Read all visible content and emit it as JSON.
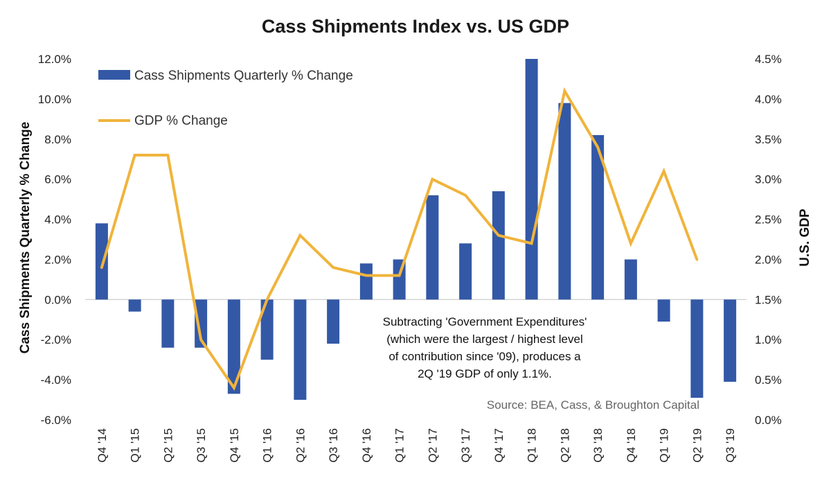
{
  "chart_data": {
    "type": "bar",
    "title": "Cass Shipments Index vs. US GDP",
    "categories": [
      "Q4 '14",
      "Q1 '15",
      "Q2 '15",
      "Q3 '15",
      "Q4 '15",
      "Q1 '16",
      "Q2 '16",
      "Q3 '16",
      "Q4 '16",
      "Q1 '17",
      "Q2 '17",
      "Q3 '17",
      "Q4 '17",
      "Q1 '18",
      "Q2 '18",
      "Q3 '18",
      "Q4 '18",
      "Q1 '19",
      "Q2 '19",
      "Q3 '19"
    ],
    "series": [
      {
        "name": "Cass Shipments Quarterly % Change",
        "type": "bar",
        "axis": "left",
        "color": "#3358a6",
        "values": [
          3.8,
          -0.6,
          -2.4,
          -2.4,
          -4.7,
          -3.0,
          -5.0,
          -2.2,
          1.8,
          2.0,
          5.2,
          2.8,
          5.4,
          12.0,
          9.8,
          8.2,
          2.0,
          -1.1,
          -4.9,
          -4.1
        ]
      },
      {
        "name": "GDP % Change",
        "type": "line",
        "axis": "right",
        "color": "#f0b43c",
        "values": [
          1.9,
          3.3,
          3.3,
          1.0,
          0.4,
          1.5,
          2.3,
          1.9,
          1.8,
          1.8,
          3.0,
          2.8,
          2.3,
          2.2,
          4.1,
          3.4,
          2.2,
          3.1,
          2.0,
          null
        ]
      }
    ],
    "ylabel": "Cass Shipments Quarterly % Change",
    "ylabel_right": "U.S. GDP",
    "ylim": [
      -6,
      12
    ],
    "ylim_right": [
      0,
      4.5
    ],
    "yticks": [
      "12.0%",
      "10.0%",
      "8.0%",
      "6.0%",
      "4.0%",
      "2.0%",
      "0.0%",
      "-2.0%",
      "-4.0%",
      "-6.0%"
    ],
    "yticks_right": [
      "4.5%",
      "4.0%",
      "3.5%",
      "3.0%",
      "2.5%",
      "2.0%",
      "1.5%",
      "1.0%",
      "0.5%",
      "0.0%"
    ],
    "annotation": [
      "Subtracting 'Government Expenditures'",
      "(which were the largest / highest level",
      "of contribution since '09), produces a",
      "2Q '19 GDP of only 1.1%."
    ],
    "source": "Source: BEA, Cass, & Broughton Capital",
    "grid": false,
    "legend_position": "top-left"
  }
}
